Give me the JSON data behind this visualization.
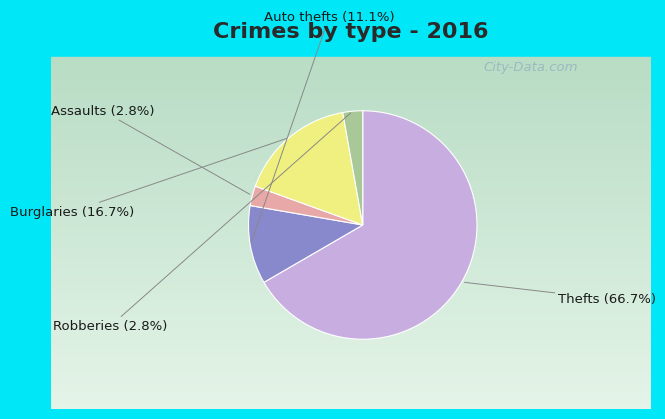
{
  "title": "Crimes by type - 2016",
  "slices": [
    {
      "label": "Thefts (66.7%)",
      "value": 66.7,
      "color": "#c8aee0"
    },
    {
      "label": "Auto thefts (11.1%)",
      "value": 11.1,
      "color": "#8888cc"
    },
    {
      "label": "Assaults (2.8%)",
      "value": 2.8,
      "color": "#e8a8a8"
    },
    {
      "label": "Burglaries (16.7%)",
      "value": 16.7,
      "color": "#f0f080"
    },
    {
      "label": "Robberies (2.8%)",
      "value": 2.8,
      "color": "#a8c898"
    }
  ],
  "title_fontsize": 16,
  "label_fontsize": 9.5,
  "bg_cyan": "#00e8f8",
  "watermark": "City-Data.com",
  "startangle": 90,
  "title_color": "#2a2a2a"
}
